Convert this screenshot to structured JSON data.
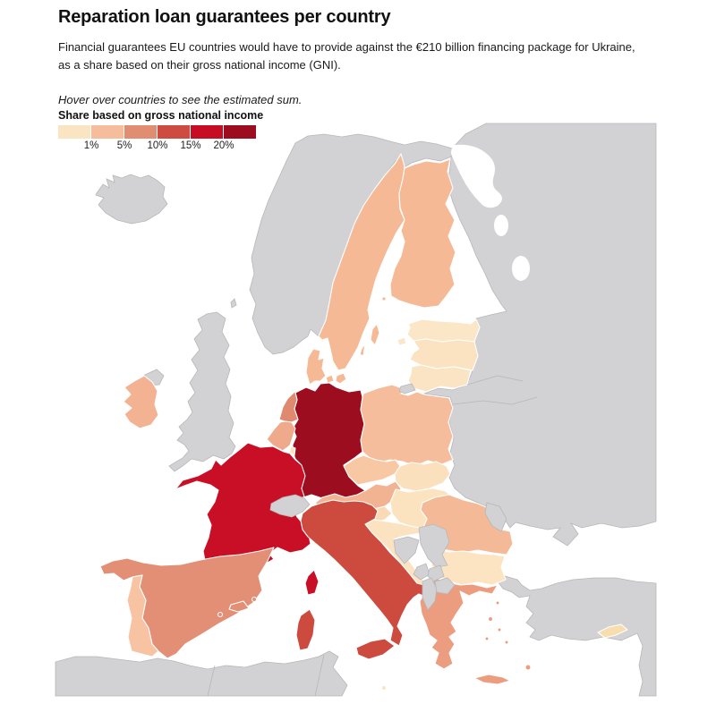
{
  "header": {
    "title": "Reparation loan guarantees per country",
    "subtitle_lines": [
      "Financial guarantees EU countries would have to provide against the €210 billion financing package for Ukraine,",
      "as a share based on their gross national income (GNI)."
    ],
    "hover_note": "Hover over countries to see the estimated sum."
  },
  "legend": {
    "title": "Share based on gross national income",
    "tick_labels": [
      "1%",
      "5%",
      "10%",
      "15%",
      "20%"
    ]
  },
  "chart_data": {
    "type": "choropleth",
    "region": "Europe",
    "unit": "share of gross national income (%)",
    "color_scale": {
      "colors": [
        "#fbe4c2",
        "#f6bd9c",
        "#e18d72",
        "#cd4b40",
        "#c60d24",
        "#9c0d1f"
      ],
      "tick_labels": [
        "1%",
        "5%",
        "10%",
        "15%",
        "20%"
      ]
    },
    "countries": [
      {
        "id": "germany",
        "name": "Germany",
        "color": "#9c0d1f"
      },
      {
        "id": "france",
        "name": "France",
        "color": "#c90f26"
      },
      {
        "id": "italy",
        "name": "Italy",
        "color": "#cc4a3e"
      },
      {
        "id": "spain",
        "name": "Spain",
        "color": "#e28f75"
      },
      {
        "id": "netherlands",
        "name": "Netherlands",
        "color": "#df8a70"
      },
      {
        "id": "greece",
        "name": "Greece",
        "color": "#ec9d80"
      },
      {
        "id": "belgium",
        "name": "Belgium",
        "color": "#eeaa8b"
      },
      {
        "id": "austria",
        "name": "Austria",
        "color": "#f2b392"
      },
      {
        "id": "poland",
        "name": "Poland",
        "color": "#f5bd9c"
      },
      {
        "id": "sweden",
        "name": "Sweden",
        "color": "#f5b996"
      },
      {
        "id": "finland",
        "name": "Finland",
        "color": "#f5b996"
      },
      {
        "id": "denmark",
        "name": "Denmark",
        "color": "#f5b996"
      },
      {
        "id": "ireland",
        "name": "Ireland",
        "color": "#f3b392"
      },
      {
        "id": "czechia",
        "name": "Czechia",
        "color": "#f8c8a5"
      },
      {
        "id": "portugal",
        "name": "Portugal",
        "color": "#f7c3a2"
      },
      {
        "id": "romania",
        "name": "Romania",
        "color": "#f4ba98"
      },
      {
        "id": "slovakia",
        "name": "Slovakia",
        "color": "#fbe0bd"
      },
      {
        "id": "hungary",
        "name": "Hungary",
        "color": "#fce3c0"
      },
      {
        "id": "croatia",
        "name": "Croatia",
        "color": "#fbe3c2"
      },
      {
        "id": "slovenia",
        "name": "Slovenia",
        "color": "#f9d9b6"
      },
      {
        "id": "bulgaria",
        "name": "Bulgaria",
        "color": "#fce3c1"
      },
      {
        "id": "estonia",
        "name": "Estonia",
        "color": "#fce6c8"
      },
      {
        "id": "latvia",
        "name": "Latvia",
        "color": "#fbe2c0"
      },
      {
        "id": "lithuania",
        "name": "Lithuania",
        "color": "#fbe4c4"
      },
      {
        "id": "luxembourg",
        "name": "Luxembourg",
        "color": "#fbe4c4"
      },
      {
        "id": "cyprus",
        "name": "Cyprus",
        "color": "#f8deae"
      },
      {
        "id": "malta",
        "name": "Malta",
        "color": "#fbe4c2"
      }
    ],
    "non_eu": {
      "color": "#d2d2d4",
      "border": "#b7b7b9",
      "sea_color": "#ffffff",
      "regions": [
        "Iceland",
        "Norway",
        "United Kingdom",
        "Northern Ireland",
        "Switzerland",
        "Russia",
        "Belarus",
        "Ukraine",
        "Moldova",
        "Kaliningrad",
        "Serbia",
        "Bosnia and Herzegovina",
        "Montenegro",
        "Kosovo",
        "Albania",
        "North Macedonia",
        "Turkey",
        "North Africa",
        "Middle East"
      ]
    }
  }
}
